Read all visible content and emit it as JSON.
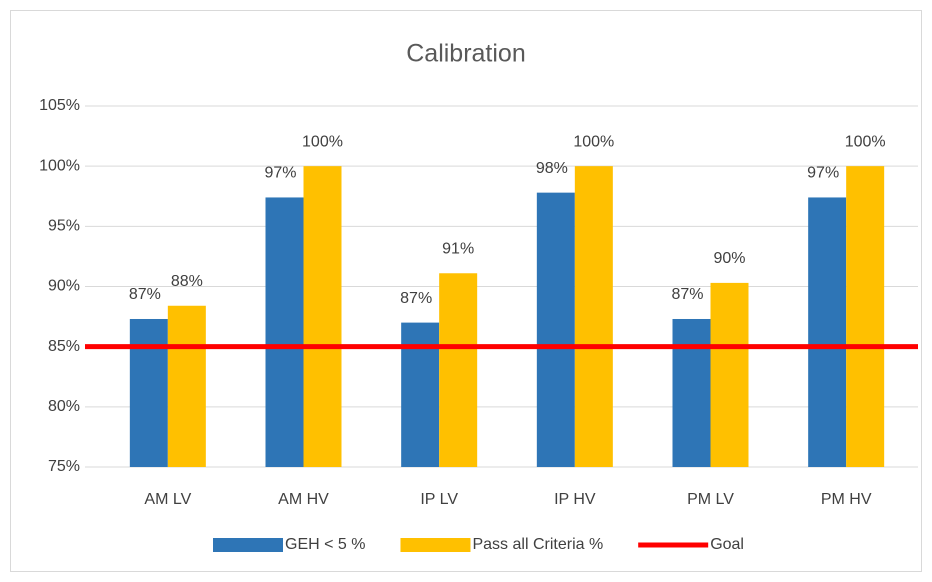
{
  "chart_data": {
    "type": "bar",
    "title": "Calibration",
    "categories": [
      "AM LV",
      "AM HV",
      "IP LV",
      "IP HV",
      "PM LV",
      "PM HV"
    ],
    "series": [
      {
        "name": "GEH < 5 %",
        "color": "#2e75b6",
        "values": [
          87.3,
          97.4,
          87.0,
          97.8,
          87.3,
          97.4
        ],
        "value_labels": [
          "87%",
          "97%",
          "87%",
          "98%",
          "87%",
          "97%"
        ]
      },
      {
        "name": "Pass all Criteria %",
        "color": "#ffc000",
        "values": [
          88.4,
          100,
          91.1,
          100,
          90.3,
          100
        ],
        "value_labels": [
          "88%",
          "100%",
          "91%",
          "100%",
          "90%",
          "100%"
        ]
      },
      {
        "name": "Goal",
        "color": "#ff0000",
        "type": "line",
        "values": [
          85,
          85,
          85,
          85,
          85,
          85
        ]
      }
    ],
    "ylim": [
      75,
      105
    ],
    "yticks": [
      {
        "value": 75,
        "label": "75%"
      },
      {
        "value": 80,
        "label": "80%"
      },
      {
        "value": 85,
        "label": "85%"
      },
      {
        "value": 90,
        "label": "90%"
      },
      {
        "value": 95,
        "label": "95%"
      },
      {
        "value": 100,
        "label": "100%"
      },
      {
        "value": 105,
        "label": "105%"
      }
    ],
    "grid": true,
    "legend": "bottom"
  }
}
